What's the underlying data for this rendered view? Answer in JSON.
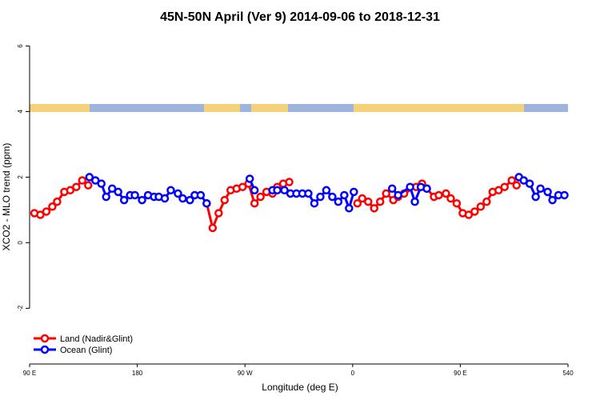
{
  "chart_data": {
    "type": "line",
    "title": "45N-50N April (Ver 9)   2014-09-06 to 2018-12-31",
    "x_label": "Longitude (deg E)",
    "y_label": "XCO2 - MLO trend (ppm)",
    "xlim": [
      90,
      540
    ],
    "ylim": [
      -3.7,
      6.5
    ],
    "xticks": [
      {
        "value": 90,
        "label": "90 E"
      },
      180,
      {
        "value": 270,
        "label": "90 W"
      },
      {
        "value": 360,
        "label": "0"
      },
      {
        "value": 450,
        "label": "90 E"
      },
      540
    ],
    "yticks": [
      -2,
      0,
      2,
      4,
      6
    ],
    "legend": "bottom-left",
    "series": [
      {
        "name": "Land (Nadir&Glint)",
        "color": "#ff0000",
        "x": [
          94,
          99,
          104,
          109,
          113,
          119,
          124,
          129,
          134,
          139,
          139,
          238,
          243,
          248,
          253,
          258,
          263,
          268,
          273,
          278,
          283,
          288,
          293,
          297,
          302,
          307,
          307,
          364,
          368,
          373,
          378,
          383,
          388,
          394,
          398,
          403,
          413,
          418,
          422,
          428,
          432,
          438,
          442,
          447,
          452,
          457,
          462,
          467,
          472,
          477,
          482,
          487,
          493,
          497
        ],
        "values": [
          0.9,
          0.85,
          0.95,
          1.1,
          1.25,
          1.55,
          1.6,
          1.7,
          1.9,
          1.75,
          null,
          1.2,
          0.45,
          0.9,
          1.3,
          1.6,
          1.65,
          1.7,
          1.8,
          1.2,
          1.4,
          1.55,
          1.5,
          1.7,
          1.8,
          1.85,
          null,
          1.2,
          1.35,
          1.25,
          1.05,
          1.25,
          1.5,
          1.3,
          1.4,
          1.5,
          1.7,
          1.8,
          1.65,
          1.4,
          1.45,
          1.5,
          1.35,
          1.2,
          0.9,
          0.85,
          0.95,
          1.1,
          1.25,
          1.55,
          1.6,
          1.7,
          1.9,
          1.75
        ]
      },
      {
        "name": "Ocean (Glint)",
        "color": "#0000ff",
        "x": [
          140,
          145,
          150,
          154,
          159,
          164,
          169,
          174,
          178,
          184,
          189,
          194,
          198,
          203,
          208,
          214,
          218,
          224,
          228,
          233,
          238,
          238,
          274,
          278,
          278,
          293,
          297,
          303,
          308,
          313,
          318,
          323,
          328,
          333,
          338,
          343,
          348,
          353,
          357,
          361,
          361,
          393,
          398,
          408,
          412,
          417,
          422,
          422,
          499,
          503,
          508,
          513,
          517,
          523,
          527,
          532,
          537
        ],
        "values": [
          2.0,
          1.9,
          1.8,
          1.4,
          1.65,
          1.55,
          1.3,
          1.45,
          1.45,
          1.3,
          1.45,
          1.4,
          1.4,
          1.35,
          1.6,
          1.5,
          1.35,
          1.3,
          1.45,
          1.45,
          1.2,
          null,
          1.95,
          1.6,
          null,
          1.6,
          1.6,
          1.6,
          1.5,
          1.5,
          1.5,
          1.5,
          1.2,
          1.4,
          1.6,
          1.4,
          1.25,
          1.45,
          1.05,
          1.55,
          null,
          1.65,
          1.45,
          1.7,
          1.25,
          1.7,
          1.65,
          null,
          2.0,
          1.9,
          1.8,
          1.4,
          1.65,
          1.55,
          1.3,
          1.45,
          1.45
        ]
      }
    ]
  }
}
